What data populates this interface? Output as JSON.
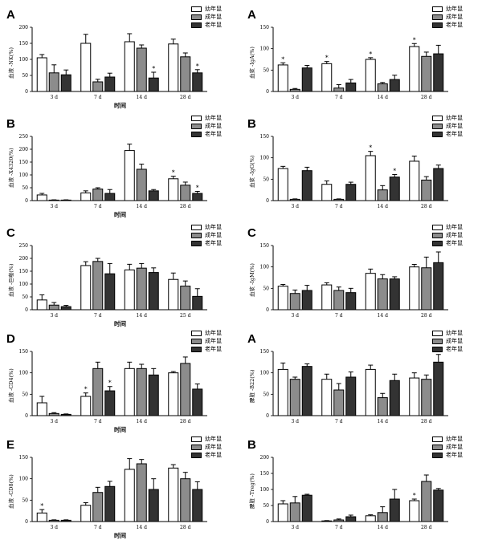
{
  "legend_labels": [
    "幼年鼠",
    "成年鼠",
    "老年鼠"
  ],
  "colors": {
    "young": "#ffffff",
    "adult": "#8c8c8c",
    "old": "#333333"
  },
  "chart_data": [
    {
      "type": "bar",
      "panel_letter": "A",
      "title": "",
      "ylabel": "血液 -NK(%)",
      "xlabel": "时间",
      "categories": [
        "3 d",
        "7 d",
        "14 d",
        "28 d"
      ],
      "ylim": [
        0,
        200
      ],
      "yticks": [
        0,
        50,
        100,
        150,
        200
      ],
      "series": [
        {
          "name": "幼年鼠",
          "values": [
            105,
            150,
            155,
            148
          ],
          "errors": [
            10,
            28,
            25,
            15
          ],
          "stars": [
            false,
            false,
            false,
            false
          ]
        },
        {
          "name": "成年鼠",
          "values": [
            58,
            30,
            135,
            108
          ],
          "errors": [
            25,
            8,
            10,
            12
          ],
          "stars": [
            false,
            false,
            false,
            false
          ]
        },
        {
          "name": "老年鼠",
          "values": [
            52,
            45,
            42,
            58
          ],
          "errors": [
            15,
            12,
            18,
            10
          ],
          "stars": [
            false,
            false,
            true,
            true
          ]
        }
      ]
    },
    {
      "type": "bar",
      "panel_letter": "A",
      "title": "",
      "ylabel": "血浆 -IgA(%)",
      "xlabel": "",
      "categories": [
        "3 d",
        "7 d",
        "14 d",
        "28 d"
      ],
      "ylim": [
        0,
        150
      ],
      "yticks": [
        0,
        50,
        100,
        150
      ],
      "series": [
        {
          "name": "幼年鼠",
          "values": [
            62,
            65,
            75,
            105
          ],
          "errors": [
            5,
            5,
            4,
            7
          ],
          "stars": [
            true,
            true,
            true,
            true
          ]
        },
        {
          "name": "成年鼠",
          "values": [
            5,
            8,
            18,
            82
          ],
          "errors": [
            2,
            8,
            3,
            10
          ],
          "stars": [
            false,
            false,
            false,
            false
          ]
        },
        {
          "name": "老年鼠",
          "values": [
            55,
            20,
            28,
            88
          ],
          "errors": [
            6,
            8,
            10,
            20
          ],
          "stars": [
            false,
            false,
            false,
            false
          ]
        }
      ]
    },
    {
      "type": "bar",
      "panel_letter": "B",
      "title": "",
      "ylabel": "血液 -X4320(%)",
      "xlabel": "时间",
      "categories": [
        "3 d",
        "7 d",
        "14 d",
        "28 d"
      ],
      "ylim": [
        0,
        250
      ],
      "yticks": [
        0,
        50,
        100,
        150,
        200,
        250
      ],
      "series": [
        {
          "name": "幼年鼠",
          "values": [
            22,
            30,
            195,
            85
          ],
          "errors": [
            6,
            8,
            25,
            10
          ],
          "stars": [
            false,
            false,
            false,
            true
          ]
        },
        {
          "name": "成年鼠",
          "values": [
            2,
            45,
            122,
            60
          ],
          "errors": [
            1,
            5,
            20,
            12
          ],
          "stars": [
            false,
            false,
            false,
            false
          ]
        },
        {
          "name": "老年鼠",
          "values": [
            2,
            28,
            38,
            28
          ],
          "errors": [
            1,
            15,
            5,
            8
          ],
          "stars": [
            false,
            false,
            false,
            true
          ]
        }
      ]
    },
    {
      "type": "bar",
      "panel_letter": "B",
      "title": "",
      "ylabel": "血浆 -IgG(%)",
      "xlabel": "",
      "categories": [
        "3 d",
        "7 d",
        "14 d",
        "28 d"
      ],
      "ylim": [
        0,
        150
      ],
      "yticks": [
        0,
        50,
        100,
        150
      ],
      "series": [
        {
          "name": "幼年鼠",
          "values": [
            75,
            38,
            105,
            92
          ],
          "errors": [
            5,
            8,
            10,
            12
          ],
          "stars": [
            false,
            false,
            true,
            false
          ]
        },
        {
          "name": "成年鼠",
          "values": [
            3,
            3,
            25,
            48
          ],
          "errors": [
            1,
            1,
            10,
            8
          ],
          "stars": [
            false,
            false,
            false,
            false
          ]
        },
        {
          "name": "老年鼠",
          "values": [
            70,
            38,
            55,
            75
          ],
          "errors": [
            8,
            5,
            6,
            8
          ],
          "stars": [
            false,
            false,
            true,
            false
          ]
        }
      ]
    },
    {
      "type": "bar",
      "panel_letter": "C",
      "title": "",
      "ylabel": "血液 -巨噬(%)",
      "xlabel": "时间",
      "categories": [
        "3 d",
        "7 d",
        "14 d",
        "25 d"
      ],
      "ylim": [
        0,
        250
      ],
      "yticks": [
        0,
        50,
        100,
        150,
        200,
        250
      ],
      "series": [
        {
          "name": "幼年鼠",
          "values": [
            38,
            172,
            155,
            118
          ],
          "errors": [
            20,
            15,
            22,
            25
          ],
          "stars": [
            false,
            false,
            false,
            false
          ]
        },
        {
          "name": "成年鼠",
          "values": [
            18,
            188,
            162,
            92
          ],
          "errors": [
            10,
            12,
            18,
            20
          ],
          "stars": [
            false,
            false,
            false,
            false
          ]
        },
        {
          "name": "老年鼠",
          "values": [
            12,
            140,
            145,
            52
          ],
          "errors": [
            5,
            40,
            18,
            30
          ],
          "stars": [
            false,
            false,
            false,
            false
          ]
        }
      ]
    },
    {
      "type": "bar",
      "panel_letter": "C",
      "title": "",
      "ylabel": "血浆 -IgM(%)",
      "xlabel": "",
      "categories": [
        "3 d",
        "7 d",
        "14 d",
        "28 d"
      ],
      "ylim": [
        0,
        150
      ],
      "yticks": [
        0,
        50,
        100,
        150
      ],
      "series": [
        {
          "name": "幼年鼠",
          "values": [
            55,
            58,
            85,
            100
          ],
          "errors": [
            4,
            5,
            10,
            6
          ],
          "stars": [
            false,
            false,
            false,
            false
          ]
        },
        {
          "name": "成年鼠",
          "values": [
            38,
            45,
            72,
            98
          ],
          "errors": [
            8,
            8,
            10,
            25
          ],
          "stars": [
            false,
            false,
            false,
            false
          ]
        },
        {
          "name": "老年鼠",
          "values": [
            45,
            40,
            72,
            110
          ],
          "errors": [
            12,
            10,
            5,
            25
          ],
          "stars": [
            false,
            false,
            false,
            false
          ]
        }
      ]
    },
    {
      "type": "bar",
      "panel_letter": "D",
      "title": "",
      "ylabel": "血液 -CD4(%)",
      "xlabel": "时间",
      "categories": [
        "3 d",
        "7 d",
        "14 d",
        "28 d"
      ],
      "ylim": [
        0,
        150
      ],
      "yticks": [
        0,
        50,
        100,
        150
      ],
      "series": [
        {
          "name": "幼年鼠",
          "values": [
            30,
            45,
            110,
            100
          ],
          "errors": [
            15,
            8,
            15,
            3
          ],
          "stars": [
            false,
            true,
            false,
            false
          ]
        },
        {
          "name": "成年鼠",
          "values": [
            5,
            110,
            110,
            122
          ],
          "errors": [
            2,
            15,
            10,
            15
          ],
          "stars": [
            false,
            false,
            false,
            false
          ]
        },
        {
          "name": "老年鼠",
          "values": [
            3,
            58,
            95,
            62
          ],
          "errors": [
            1,
            10,
            15,
            12
          ],
          "stars": [
            false,
            true,
            false,
            false
          ]
        }
      ]
    },
    {
      "type": "bar",
      "panel_letter": "A",
      "title": "",
      "ylabel": "脾脏 -B22(%)",
      "xlabel": "",
      "categories": [
        "3 d",
        "7 d",
        "14 d",
        "28 d"
      ],
      "ylim": [
        0,
        150
      ],
      "yticks": [
        0,
        50,
        100,
        150
      ],
      "series": [
        {
          "name": "幼年鼠",
          "values": [
            108,
            85,
            108,
            88
          ],
          "errors": [
            15,
            12,
            10,
            12
          ],
          "stars": [
            false,
            false,
            false,
            false
          ]
        },
        {
          "name": "成年鼠",
          "values": [
            85,
            60,
            42,
            85
          ],
          "errors": [
            5,
            15,
            10,
            10
          ],
          "stars": [
            false,
            false,
            false,
            false
          ]
        },
        {
          "name": "老年鼠",
          "values": [
            115,
            90,
            82,
            125
          ],
          "errors": [
            6,
            12,
            15,
            18
          ],
          "stars": [
            false,
            false,
            false,
            false
          ]
        }
      ]
    },
    {
      "type": "bar",
      "panel_letter": "E",
      "title": "",
      "ylabel": "血液 -CD8(%)",
      "xlabel": "时间",
      "categories": [
        "3 d",
        "7 d",
        "14 d",
        "28 d"
      ],
      "ylim": [
        0,
        150
      ],
      "yticks": [
        0,
        50,
        100,
        150
      ],
      "series": [
        {
          "name": "幼年鼠",
          "values": [
            20,
            38,
            122,
            125
          ],
          "errors": [
            8,
            6,
            25,
            8
          ],
          "stars": [
            true,
            false,
            false,
            false
          ]
        },
        {
          "name": "成年鼠",
          "values": [
            3,
            68,
            135,
            100
          ],
          "errors": [
            1,
            12,
            10,
            15
          ],
          "stars": [
            false,
            false,
            false,
            false
          ]
        },
        {
          "name": "老年鼠",
          "values": [
            3,
            82,
            75,
            75
          ],
          "errors": [
            1,
            12,
            25,
            18
          ],
          "stars": [
            false,
            false,
            false,
            false
          ]
        }
      ]
    },
    {
      "type": "bar",
      "panel_letter": "B",
      "title": "",
      "ylabel": "脾脏 -Treg(%)",
      "xlabel": "",
      "categories": [
        "3 d",
        "7 d",
        "14 d",
        "28 d"
      ],
      "ylim": [
        0,
        200
      ],
      "yticks": [
        0,
        50,
        100,
        150,
        200
      ],
      "series": [
        {
          "name": "幼年鼠",
          "values": [
            55,
            2,
            18,
            65
          ],
          "errors": [
            10,
            1,
            3,
            5
          ],
          "stars": [
            false,
            false,
            false,
            true
          ]
        },
        {
          "name": "成年鼠",
          "values": [
            58,
            5,
            28,
            125
          ],
          "errors": [
            20,
            3,
            18,
            20
          ],
          "stars": [
            false,
            false,
            false,
            false
          ]
        },
        {
          "name": "老年鼠",
          "values": [
            82,
            15,
            70,
            98
          ],
          "errors": [
            3,
            5,
            30,
            5
          ],
          "stars": [
            false,
            false,
            false,
            false
          ]
        }
      ]
    }
  ]
}
